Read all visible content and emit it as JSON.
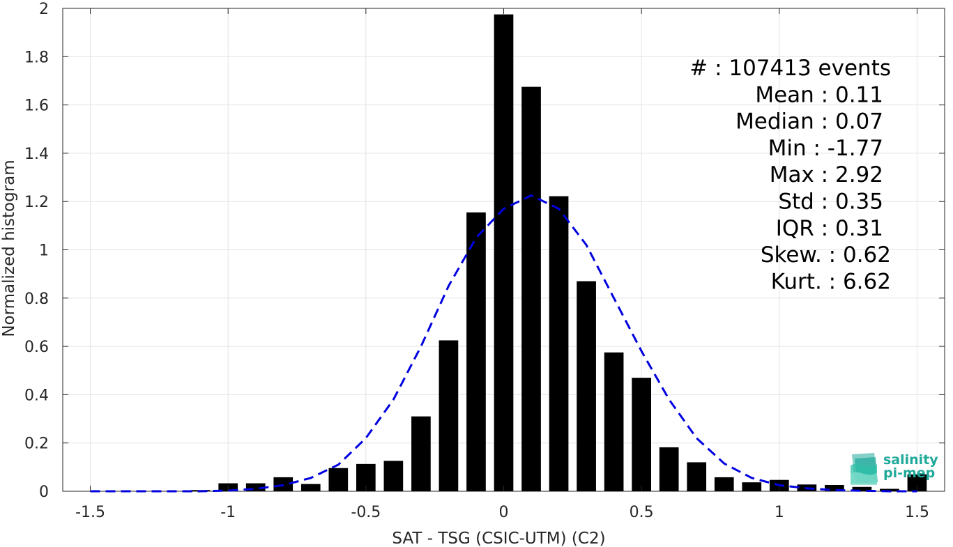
{
  "chart_data": {
    "type": "bar",
    "xlabel": "SAT - TSG (CSIC-UTM) (C2)",
    "ylabel": "Normalized histogram",
    "xlim": [
      -1.6,
      1.6
    ],
    "ylim": [
      0,
      2
    ],
    "grid": true,
    "xticks": [
      -1.5,
      -1,
      -0.5,
      0,
      0.5,
      1,
      1.5
    ],
    "xtick_labels": [
      "-1.5",
      "-1",
      "-0.5",
      "0",
      "0.5",
      "1",
      "1.5"
    ],
    "yticks": [
      0,
      0.2,
      0.4,
      0.6,
      0.8,
      1,
      1.2,
      1.4,
      1.6,
      1.8,
      2
    ],
    "ytick_labels": [
      "0",
      "0.2",
      "0.4",
      "0.6",
      "0.8",
      "1",
      "1.2",
      "1.4",
      "1.6",
      "1.8",
      "2"
    ],
    "bar_width": 0.07,
    "bar_color": "#000000",
    "bars": {
      "x": [
        -1.1,
        -1.0,
        -0.9,
        -0.8,
        -0.7,
        -0.6,
        -0.5,
        -0.4,
        -0.3,
        -0.2,
        -0.1,
        0.0,
        0.1,
        0.2,
        0.3,
        0.4,
        0.5,
        0.6,
        0.7,
        0.8,
        0.9,
        1.0,
        1.1,
        1.2,
        1.3,
        1.4,
        1.5
      ],
      "values": [
        0.005,
        0.033,
        0.033,
        0.058,
        0.03,
        0.096,
        0.113,
        0.126,
        0.31,
        0.625,
        1.155,
        1.975,
        1.675,
        1.222,
        0.87,
        0.575,
        0.47,
        0.182,
        0.12,
        0.058,
        0.037,
        0.047,
        0.028,
        0.026,
        0.018,
        0.01,
        0.07
      ]
    },
    "fit_curve": {
      "style": "dashed",
      "color": "#0000e0",
      "x": [
        -1.5,
        -1.4,
        -1.3,
        -1.2,
        -1.1,
        -1.0,
        -0.9,
        -0.8,
        -0.7,
        -0.6,
        -0.5,
        -0.4,
        -0.3,
        -0.2,
        -0.1,
        0.0,
        0.1,
        0.2,
        0.3,
        0.4,
        0.5,
        0.6,
        0.7,
        0.8,
        0.9,
        1.0,
        1.1,
        1.2,
        1.3,
        1.4,
        1.5
      ],
      "y": [
        0.0,
        0.0,
        0.0,
        0.0,
        0.0,
        0.003,
        0.01,
        0.025,
        0.055,
        0.11,
        0.22,
        0.38,
        0.6,
        0.85,
        1.05,
        1.17,
        1.225,
        1.17,
        1.02,
        0.8,
        0.58,
        0.38,
        0.22,
        0.115,
        0.055,
        0.025,
        0.012,
        0.005,
        0.002,
        0.0,
        0.0
      ]
    },
    "stats": [
      "#  : 107413 events",
      "Mean : 0.11",
      "Median : 0.07",
      "Min : -1.77",
      "Max : 2.92",
      "Std : 0.35",
      "IQR : 0.31",
      "Skew. : 0.62",
      "Kurt. : 6.62"
    ]
  },
  "logo": {
    "line1": "salinity",
    "line2": "pi-mep",
    "color": "#1fa99a"
  }
}
